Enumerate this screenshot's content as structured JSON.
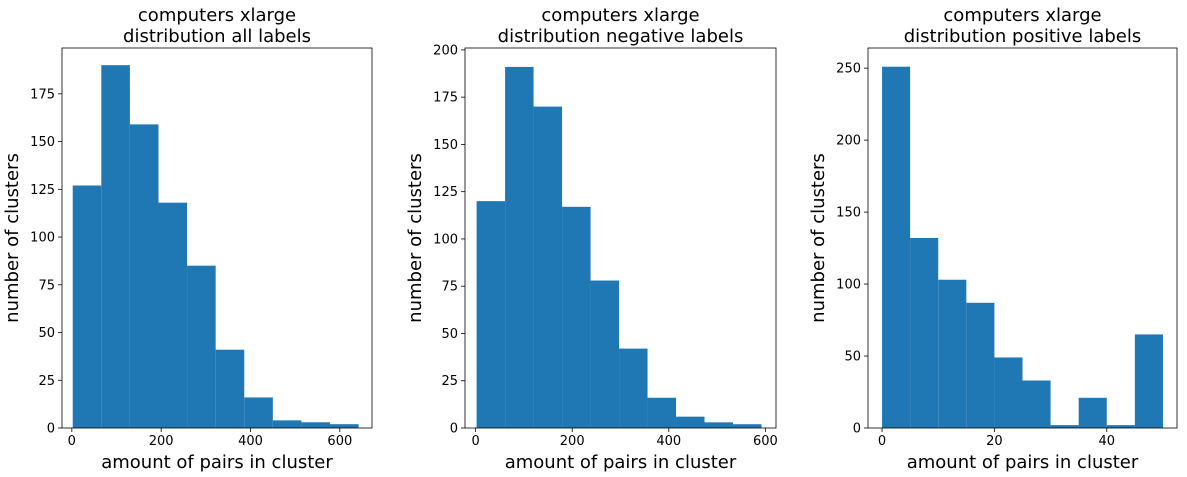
{
  "chart_data": [
    {
      "type": "bar",
      "title_lines": [
        "computers xlarge",
        "distribution all labels"
      ],
      "xlabel": "amount of pairs in cluster",
      "ylabel": "number of clusters",
      "xlim": [
        -22,
        672
      ],
      "ylim": [
        0,
        199
      ],
      "xticks": [
        "0",
        "200",
        "400",
        "600"
      ],
      "yticks": [
        "0",
        "25",
        "50",
        "75",
        "100",
        "125",
        "150",
        "175"
      ],
      "bin_edges": [
        2,
        66,
        130,
        194,
        258,
        322,
        386,
        450,
        514,
        578,
        642
      ],
      "values": [
        127,
        190,
        159,
        118,
        85,
        41,
        16,
        4,
        3,
        2
      ],
      "color": "#1f77b4"
    },
    {
      "type": "bar",
      "title_lines": [
        "computers xlarge",
        "distribution negative labels"
      ],
      "xlabel": "amount of pairs in cluster",
      "ylabel": "number of clusters",
      "xlim": [
        -22,
        622
      ],
      "ylim": [
        0,
        201
      ],
      "xticks": [
        "0",
        "200",
        "400",
        "600"
      ],
      "yticks": [
        "0",
        "25",
        "50",
        "75",
        "100",
        "125",
        "150",
        "175",
        "200"
      ],
      "bin_edges": [
        2,
        61,
        120,
        179,
        238,
        297,
        356,
        415,
        474,
        533,
        592
      ],
      "values": [
        120,
        191,
        170,
        117,
        78,
        42,
        16,
        6,
        3,
        2
      ],
      "color": "#1f77b4"
    },
    {
      "type": "bar",
      "title_lines": [
        "computers xlarge",
        "distribution positive labels"
      ],
      "xlabel": "amount of pairs in cluster",
      "ylabel": "number of clusters",
      "xlim": [
        -2.5,
        52.5
      ],
      "ylim": [
        0,
        264
      ],
      "xticks": [
        "0",
        "20",
        "40"
      ],
      "yticks": [
        "0",
        "50",
        "100",
        "150",
        "200",
        "250"
      ],
      "bin_edges": [
        0,
        5,
        10,
        15,
        20,
        25,
        30,
        35,
        40,
        45,
        50
      ],
      "values": [
        251,
        132,
        103,
        87,
        49,
        33,
        2,
        21,
        2,
        65
      ],
      "color": "#1f77b4"
    }
  ]
}
